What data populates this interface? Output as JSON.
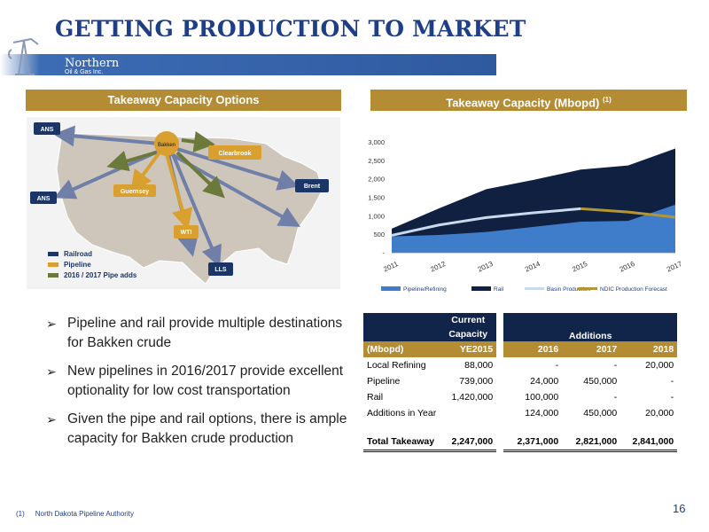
{
  "title": "GETTING PRODUCTION TO MARKET",
  "logo": {
    "name": "Northern",
    "sub": "Oil & Gas Inc."
  },
  "left_header": "Takeaway Capacity Options",
  "right_header": {
    "text": "Takeaway Capacity (Mbopd)",
    "sup": "(1)"
  },
  "map": {
    "labels": {
      "ans1": "ANS",
      "ans2": "ANS",
      "bakken": "Bakken",
      "clearbrook": "Clearbrook",
      "brent": "Brent",
      "guernsey": "Guernsey",
      "wti": "WTI",
      "lls": "LLS"
    },
    "legend": [
      {
        "label": "Railroad",
        "color": "#1b3566"
      },
      {
        "label": "Pipeline",
        "color": "#d9a030"
      },
      {
        "label": "2016 / 2017 Pipe adds",
        "color": "#6b7a3a"
      }
    ],
    "colors": {
      "rail_arrow": "#6f7fa8",
      "pipe_arrow": "#d9a030",
      "adds_arrow": "#6b7a3a",
      "land": "#cfc6bb",
      "box": "#1b3566",
      "box_gold": "#d9a030"
    }
  },
  "chart_data": {
    "type": "area",
    "categories": [
      "2011",
      "2012",
      "2013",
      "2014",
      "2015",
      "2016",
      "2017"
    ],
    "series": [
      {
        "name": "Pipeline/Refining",
        "type": "area",
        "values": [
          440,
          480,
          560,
          700,
          840,
          860,
          1300
        ],
        "color": "#3f7dca"
      },
      {
        "name": "Rail",
        "type": "area",
        "values": [
          650,
          1200,
          1720,
          1970,
          2250,
          2360,
          2820
        ],
        "color": "#102040"
      },
      {
        "name": "Basin Production",
        "type": "line",
        "values": [
          470,
          750,
          950,
          1080,
          1190,
          null,
          null
        ],
        "color": "#c9d9ee"
      },
      {
        "name": "NDIC Production Forecast",
        "type": "line",
        "values": [
          null,
          null,
          null,
          null,
          1190,
          1100,
          960
        ],
        "color": "#b39633"
      }
    ],
    "ylim": [
      0,
      3000
    ],
    "yticks": [
      "-",
      "500",
      "1,000",
      "1,500",
      "2,000",
      "2,500",
      "3,000"
    ],
    "legend_position": "bottom"
  },
  "bullets": [
    "Pipeline and rail provide multiple destinations for Bakken crude",
    "New pipelines in 2016/2017 provide excellent optionality for low cost transportation",
    "Given the pipe and rail options, there is ample capacity for Bakken crude production"
  ],
  "table": {
    "h1": {
      "current": "Current Capacity",
      "additions": "Additions"
    },
    "h2": {
      "unit": "(Mbopd)",
      "ye": "YE2015",
      "y16": "2016",
      "y17": "2017",
      "y18": "2018"
    },
    "rows": [
      {
        "label": "Local Refining",
        "ye": "88,000",
        "y16": "-",
        "y17": "-",
        "y18": "20,000"
      },
      {
        "label": "Pipeline",
        "ye": "739,000",
        "y16": "24,000",
        "y17": "450,000",
        "y18": "-"
      },
      {
        "label": "Rail",
        "ye": "1,420,000",
        "y16": "100,000",
        "y17": "-",
        "y18": "-"
      },
      {
        "label": "Additions in Year",
        "ye": "",
        "y16": "124,000",
        "y17": "450,000",
        "y18": "20,000"
      }
    ],
    "total": {
      "label": "Total Takeaway",
      "ye": "2,247,000",
      "y16": "2,371,000",
      "y17": "2,821,000",
      "y18": "2,841,000"
    }
  },
  "footnote": {
    "num": "(1)",
    "text": "North Dakota Pipeline Authority"
  },
  "page": "16",
  "colors": {
    "navy": "#1e3f87",
    "gold": "#b48c33",
    "dark_navy": "#11244a"
  }
}
